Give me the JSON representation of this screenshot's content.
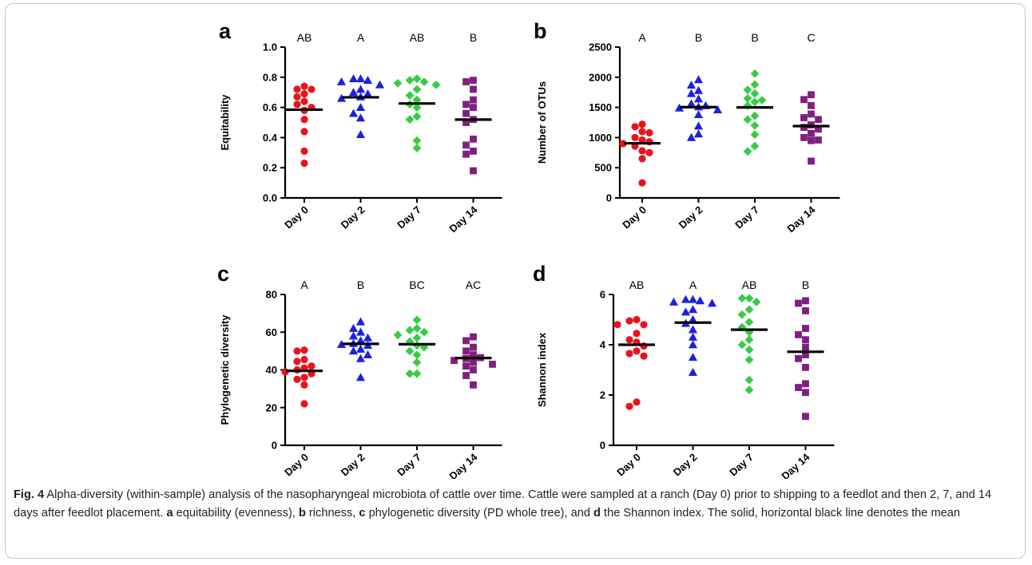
{
  "figure": {
    "caption": {
      "lead": "Fig. 4",
      "segments": [
        {
          "bold": true,
          "text": "Fig. 4"
        },
        {
          "bold": false,
          "text": " Alpha-diversity (within-sample) analysis of the nasopharyngeal microbiota of cattle over time. Cattle were sampled at a ranch (Day 0) prior to shipping to a feedlot and then 2, 7, and 14 days after feedlot placement. "
        },
        {
          "bold": true,
          "text": "a"
        },
        {
          "bold": false,
          "text": " equitability (evenness), "
        },
        {
          "bold": true,
          "text": "b"
        },
        {
          "bold": false,
          "text": " richness, "
        },
        {
          "bold": true,
          "text": "c"
        },
        {
          "bold": false,
          "text": " phylogenetic diversity (PD whole tree), and "
        },
        {
          "bold": true,
          "text": "d"
        },
        {
          "bold": false,
          "text": " the Shannon index. The solid, horizontal black line denotes the mean"
        }
      ]
    },
    "colors": {
      "day0": "#e8141c",
      "day2": "#1c20e0",
      "day7": "#36cc46",
      "day14": "#801f80"
    },
    "markers": {
      "day0": "circle",
      "day2": "triangle",
      "day7": "diamond",
      "day14": "square"
    }
  },
  "chart_data": [
    {
      "panel": "a",
      "type": "scatter",
      "ylabel": "Equitability",
      "categories": [
        "Day 0",
        "Day 2",
        "Day 7",
        "Day 14"
      ],
      "yticks": [
        "0.0",
        "0.2",
        "0.4",
        "0.6",
        "0.8",
        "1.0"
      ],
      "ylim": [
        0,
        1.0
      ],
      "significance": [
        "AB",
        "A",
        "AB",
        "B"
      ],
      "means": [
        0.585,
        0.667,
        0.626,
        0.519
      ],
      "series": [
        {
          "values": [
            0.74,
            0.72,
            0.72,
            0.69,
            0.67,
            0.64,
            0.62,
            0.6,
            0.58,
            0.52,
            0.44,
            0.31,
            0.23
          ]
        },
        {
          "values": [
            0.79,
            0.79,
            0.78,
            0.77,
            0.75,
            0.72,
            0.7,
            0.69,
            0.67,
            0.66,
            0.6,
            0.56,
            0.53,
            0.42
          ]
        },
        {
          "values": [
            0.79,
            0.78,
            0.77,
            0.76,
            0.75,
            0.72,
            0.68,
            0.65,
            0.62,
            0.6,
            0.54,
            0.52,
            0.38,
            0.33
          ]
        },
        {
          "values": [
            0.78,
            0.77,
            0.72,
            0.65,
            0.62,
            0.6,
            0.56,
            0.52,
            0.5,
            0.39,
            0.35,
            0.31,
            0.29,
            0.18
          ]
        }
      ]
    },
    {
      "panel": "b",
      "type": "scatter",
      "ylabel": "Number of OTUs",
      "categories": [
        "Day 0",
        "Day 2",
        "Day 7",
        "Day 14"
      ],
      "yticks": [
        "0",
        "500",
        "1000",
        "1500",
        "2000",
        "2500"
      ],
      "ylim": [
        0,
        2500
      ],
      "significance": [
        "A",
        "B",
        "B",
        "C"
      ],
      "means": [
        905,
        1505,
        1500,
        1190
      ],
      "series": [
        {
          "values": [
            1220,
            1180,
            1100,
            1080,
            1000,
            960,
            930,
            900,
            860,
            780,
            750,
            650,
            250
          ]
        },
        {
          "values": [
            1960,
            1870,
            1780,
            1730,
            1640,
            1560,
            1530,
            1510,
            1490,
            1460,
            1380,
            1190,
            1060,
            1000
          ]
        },
        {
          "values": [
            2060,
            1880,
            1790,
            1730,
            1650,
            1620,
            1590,
            1530,
            1360,
            1300,
            1200,
            1050,
            860,
            770
          ]
        },
        {
          "values": [
            1710,
            1630,
            1530,
            1390,
            1330,
            1300,
            1210,
            1170,
            1140,
            1070,
            1000,
            960,
            950,
            610
          ]
        }
      ]
    },
    {
      "panel": "c",
      "type": "scatter",
      "ylabel": "Phylogenetic diversity",
      "categories": [
        "Day 0",
        "Day 2",
        "Day 7",
        "Day 14"
      ],
      "yticks": [
        "0",
        "20",
        "40",
        "60",
        "80"
      ],
      "ylim": [
        0,
        80
      ],
      "significance": [
        "A",
        "B",
        "BC",
        "AC"
      ],
      "means": [
        39.5,
        53.8,
        53.6,
        46.3
      ],
      "series": [
        {
          "values": [
            50.5,
            50,
            45.5,
            44.5,
            42,
            41,
            40,
            39,
            38,
            36,
            35,
            32,
            22
          ]
        },
        {
          "values": [
            65.5,
            62,
            60,
            58,
            57,
            55.5,
            54,
            53.5,
            53,
            51,
            50,
            48,
            46,
            36
          ]
        },
        {
          "values": [
            66.5,
            62,
            61,
            60,
            58.5,
            57,
            55,
            53,
            52,
            50,
            48,
            44,
            38,
            38
          ]
        },
        {
          "values": [
            57.5,
            55.5,
            52,
            50,
            48,
            46.5,
            46,
            45,
            44,
            43,
            42,
            40,
            37,
            32
          ]
        }
      ]
    },
    {
      "panel": "d",
      "type": "scatter",
      "ylabel": "Shannon index",
      "categories": [
        "Day 0",
        "Day 2",
        "Day 7",
        "Day 14"
      ],
      "yticks": [
        "0",
        "2",
        "4",
        "6"
      ],
      "ylim": [
        0,
        7
      ],
      "significance": [
        "AB",
        "A",
        "AB",
        "B"
      ],
      "means": [
        4.0,
        4.88,
        4.6,
        3.72
      ],
      "series": [
        {
          "values": [
            5.0,
            4.95,
            4.8,
            4.8,
            4.45,
            4.2,
            4.1,
            3.95,
            3.75,
            3.65,
            3.55,
            1.72,
            1.55
          ]
        },
        {
          "values": [
            5.8,
            5.8,
            5.75,
            5.7,
            5.65,
            5.4,
            5.3,
            5.0,
            4.85,
            4.6,
            4.3,
            4.0,
            3.5,
            2.9
          ]
        },
        {
          "values": [
            5.85,
            5.85,
            5.7,
            5.4,
            5.2,
            4.9,
            4.7,
            4.5,
            4.2,
            4.0,
            3.8,
            3.4,
            2.6,
            2.2
          ]
        },
        {
          "values": [
            5.75,
            5.65,
            5.35,
            4.65,
            4.4,
            4.2,
            3.9,
            3.6,
            3.45,
            3.1,
            2.45,
            2.3,
            2.1,
            1.15
          ]
        }
      ]
    }
  ]
}
